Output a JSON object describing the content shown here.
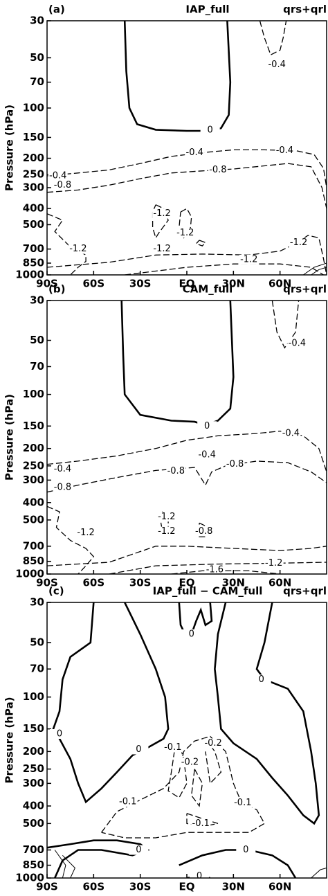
{
  "chart_data": [
    {
      "type": "contour",
      "panel_label": "(a)",
      "title": "IAP_full",
      "variable": "qrs+qrl",
      "ylabel": "Pressure (hPa)",
      "xlim": [
        -90,
        90
      ],
      "xticks": [
        {
          "value": -90,
          "label": "90S"
        },
        {
          "value": -60,
          "label": "60S"
        },
        {
          "value": -30,
          "label": "30S"
        },
        {
          "value": 0,
          "label": "EQ"
        },
        {
          "value": 30,
          "label": "30N"
        },
        {
          "value": 60,
          "label": "60N"
        }
      ],
      "ylim": [
        1000,
        30
      ],
      "yticks": [
        30,
        50,
        70,
        100,
        150,
        200,
        250,
        300,
        400,
        500,
        700,
        850,
        1000
      ],
      "y_log": true,
      "contour_labels": [
        -0.4,
        0,
        -0.4,
        -0.4,
        -0.8,
        -0.4,
        -0.8,
        -1.2,
        -1.2,
        -1.2,
        -1.2,
        -1.2,
        -1.2
      ]
    },
    {
      "type": "contour",
      "panel_label": "(b)",
      "title": "CAM_full",
      "variable": "qrs+qrl",
      "ylabel": "Pressure (hPa)",
      "xlim": [
        -90,
        90
      ],
      "xticks": [
        {
          "value": -90,
          "label": "90S"
        },
        {
          "value": -60,
          "label": "60S"
        },
        {
          "value": -30,
          "label": "30S"
        },
        {
          "value": 0,
          "label": "EQ"
        },
        {
          "value": 30,
          "label": "30N"
        },
        {
          "value": 60,
          "label": "60N"
        }
      ],
      "ylim": [
        1000,
        30
      ],
      "yticks": [
        30,
        50,
        70,
        100,
        150,
        200,
        250,
        300,
        400,
        500,
        700,
        850,
        1000
      ],
      "y_log": true,
      "contour_labels": [
        -0.4,
        0,
        -0.4,
        -0.4,
        -0.8,
        -0.8,
        -0.4,
        -0.8,
        -1.2,
        -1.2,
        -1.2,
        -0.8,
        -1.2,
        -1.6
      ]
    },
    {
      "type": "contour",
      "panel_label": "(c)",
      "title": "IAP_full − CAM_full",
      "variable": "qrs+qrl",
      "ylabel": "Pressure (hPa)",
      "xlim": [
        -90,
        90
      ],
      "xticks": [
        {
          "value": -90,
          "label": "90S"
        },
        {
          "value": -60,
          "label": "60S"
        },
        {
          "value": -30,
          "label": "30S"
        },
        {
          "value": 0,
          "label": "EQ"
        },
        {
          "value": 30,
          "label": "30N"
        },
        {
          "value": 60,
          "label": "60N"
        }
      ],
      "ylim": [
        1000,
        30
      ],
      "yticks": [
        30,
        50,
        70,
        100,
        150,
        200,
        250,
        300,
        400,
        500,
        700,
        850,
        1000
      ],
      "y_log": true,
      "contour_labels": [
        0,
        0,
        0,
        0,
        -0.1,
        -0.2,
        -0.2,
        -0.1,
        -0.1,
        -0.1,
        0,
        0,
        0
      ]
    }
  ]
}
